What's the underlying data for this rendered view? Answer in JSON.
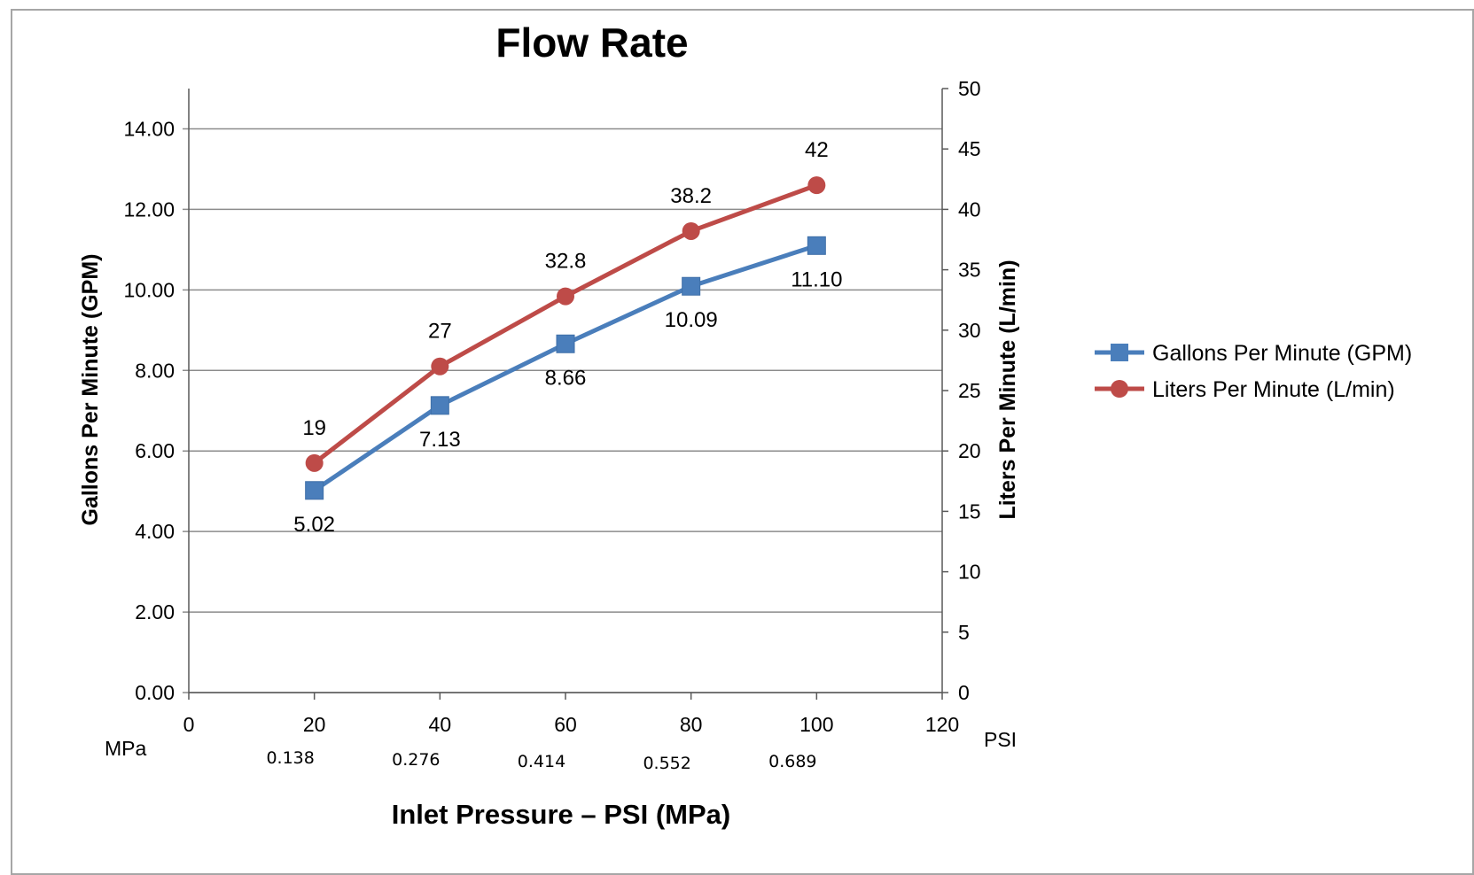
{
  "chart_data": {
    "type": "line",
    "title": "Flow Rate",
    "xlabel": "Inlet Pressure – PSI (MPa)",
    "ylabel": "Gallons Per Minute (GPM)",
    "y2label": "Liters Per Minute (L/min)",
    "x": [
      20,
      40,
      60,
      80,
      100
    ],
    "xlim": [
      0,
      120
    ],
    "xticks": [
      "0",
      "20",
      "40",
      "60",
      "80",
      "100",
      "120"
    ],
    "x_unit_label": "PSI",
    "secondary_x_label": "MPa",
    "secondary_x_ticks": [
      "0.138",
      "0.276",
      "0.414",
      "0.552",
      "0.689"
    ],
    "ylim": [
      0,
      15
    ],
    "yticks": [
      "0.00",
      "2.00",
      "4.00",
      "6.00",
      "8.00",
      "10.00",
      "12.00",
      "14.00"
    ],
    "y2lim": [
      0,
      50
    ],
    "y2ticks": [
      "0",
      "5",
      "10",
      "15",
      "20",
      "25",
      "30",
      "35",
      "40",
      "45",
      "50"
    ],
    "grid": "horizontal",
    "legend": "right",
    "series": [
      {
        "name": "Gallons Per Minute (GPM)",
        "axis": "left",
        "marker": "square",
        "color": "#4a7ebb",
        "values": [
          5.02,
          7.13,
          8.66,
          10.09,
          11.1
        ],
        "labels": [
          "5.02",
          "7.13",
          "8.66",
          "10.09",
          "11.10"
        ]
      },
      {
        "name": "Liters Per Minute (L/min)",
        "axis": "right",
        "marker": "circle",
        "color": "#be4b48",
        "values": [
          19,
          27,
          32.8,
          38.2,
          42
        ],
        "labels": [
          "19",
          "27",
          "32.8",
          "38.2",
          "42"
        ]
      }
    ]
  }
}
